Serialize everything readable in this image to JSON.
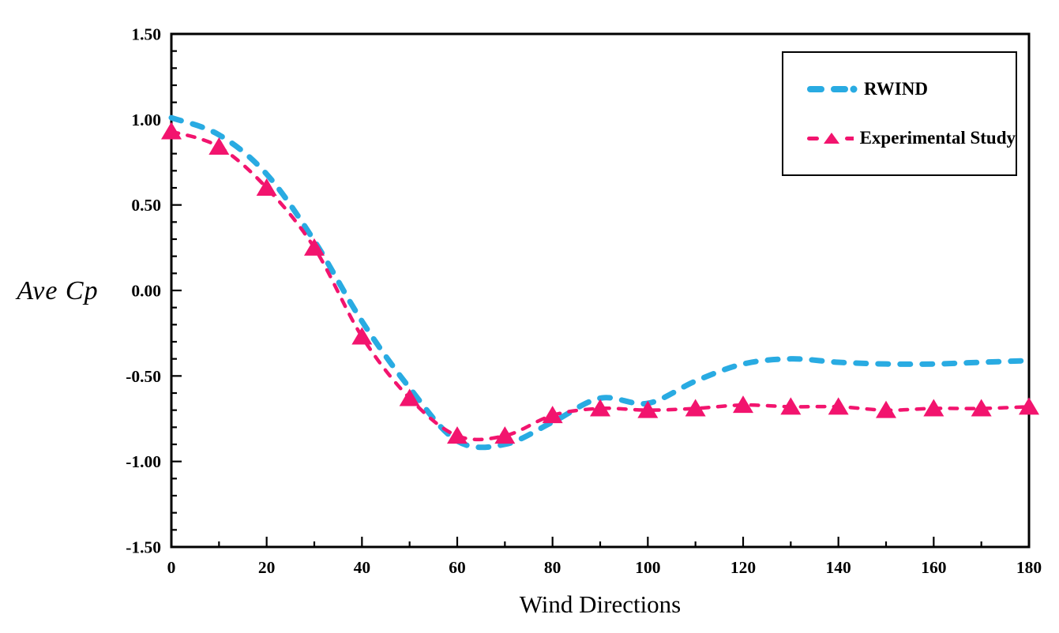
{
  "chart_data": {
    "type": "line",
    "title": "",
    "xlabel": "Wind Directions",
    "ylabel": "Ave Cp",
    "xlim": [
      0,
      180
    ],
    "ylim": [
      -1.5,
      1.5
    ],
    "grid": false,
    "legend_position": "top-right",
    "x_major_tick_step": 20,
    "x_minor_tick_step": 10,
    "y_major_tick_step": 0.5,
    "y_minor_tick_step": 0.1,
    "x_tick_labels": [
      "0",
      "20",
      "40",
      "60",
      "80",
      "100",
      "120",
      "140",
      "160",
      "180"
    ],
    "y_tick_labels": [
      "1.50",
      "1.00",
      "0.50",
      "0.00",
      "-0.50",
      "-1.00",
      "-1.50"
    ],
    "x": [
      0,
      10,
      20,
      30,
      40,
      50,
      60,
      70,
      80,
      90,
      100,
      110,
      120,
      130,
      140,
      150,
      160,
      170,
      180
    ],
    "series": [
      {
        "name": "RWIND",
        "color": "#29ABE2",
        "line_style": "dashed",
        "marker": "none",
        "smooth": true,
        "values": [
          1.01,
          0.91,
          0.68,
          0.29,
          -0.18,
          -0.57,
          -0.88,
          -0.9,
          -0.77,
          -0.63,
          -0.66,
          -0.53,
          -0.43,
          -0.4,
          -0.42,
          -0.43,
          -0.43,
          -0.42,
          -0.41
        ]
      },
      {
        "name": "Experimental Study",
        "color": "#F2146E",
        "line_style": "dashed",
        "marker": "triangle",
        "smooth": true,
        "values": [
          0.93,
          0.84,
          0.6,
          0.25,
          -0.27,
          -0.63,
          -0.85,
          -0.85,
          -0.73,
          -0.69,
          -0.7,
          -0.69,
          -0.67,
          -0.68,
          -0.68,
          -0.7,
          -0.69,
          -0.69,
          -0.68
        ]
      }
    ]
  }
}
